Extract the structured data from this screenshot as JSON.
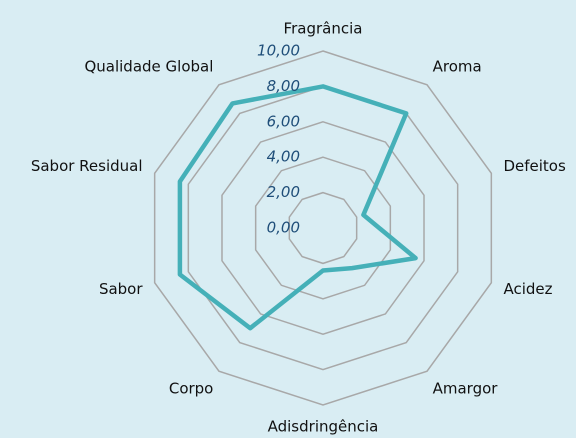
{
  "chart_data": {
    "type": "radar",
    "categories": [
      "Fragrância",
      "Aroma",
      "Defeitos",
      "Acidez",
      "Amargor",
      "Adisdringência",
      "Corpo",
      "Sabor",
      "Sabor Residual",
      "Qualidade Global"
    ],
    "values": [
      8,
      8,
      2.4,
      5.5,
      2.8,
      2.4,
      7,
      8.5,
      8.5,
      8.7
    ],
    "color": "#45b0b8",
    "ylim": [
      0,
      10
    ],
    "yticks": [
      {
        "value": 0,
        "label": "0,00"
      },
      {
        "value": 2,
        "label": "2,00"
      },
      {
        "value": 4,
        "label": "4,00"
      },
      {
        "value": 6,
        "label": "6,00"
      },
      {
        "value": 8,
        "label": "8,00"
      },
      {
        "value": 10,
        "label": "10,00"
      }
    ],
    "grid": true
  }
}
